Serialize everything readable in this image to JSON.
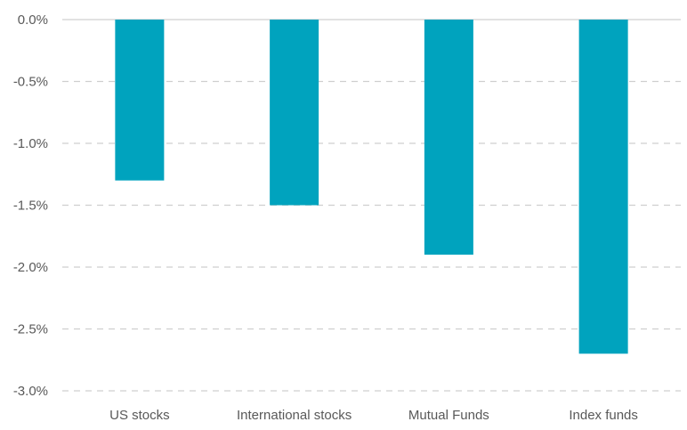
{
  "chart_data": {
    "type": "bar",
    "categories": [
      "US stocks",
      "International stocks",
      "Mutual Funds",
      "Index funds"
    ],
    "values": [
      -1.3,
      -1.5,
      -1.9,
      -2.7
    ],
    "ylim": [
      -3.0,
      0.0
    ],
    "yticks": [
      0.0,
      -0.5,
      -1.0,
      -1.5,
      -2.0,
      -2.5,
      -3.0
    ],
    "ytick_labels": [
      "0.0%",
      "-0.5%",
      "-1.0%",
      "-1.5%",
      "-2.0%",
      "-2.5%",
      "-3.0%"
    ],
    "bar_color": "#00A3BE",
    "grid": true,
    "grid_style": "dashed",
    "legend": "none"
  }
}
